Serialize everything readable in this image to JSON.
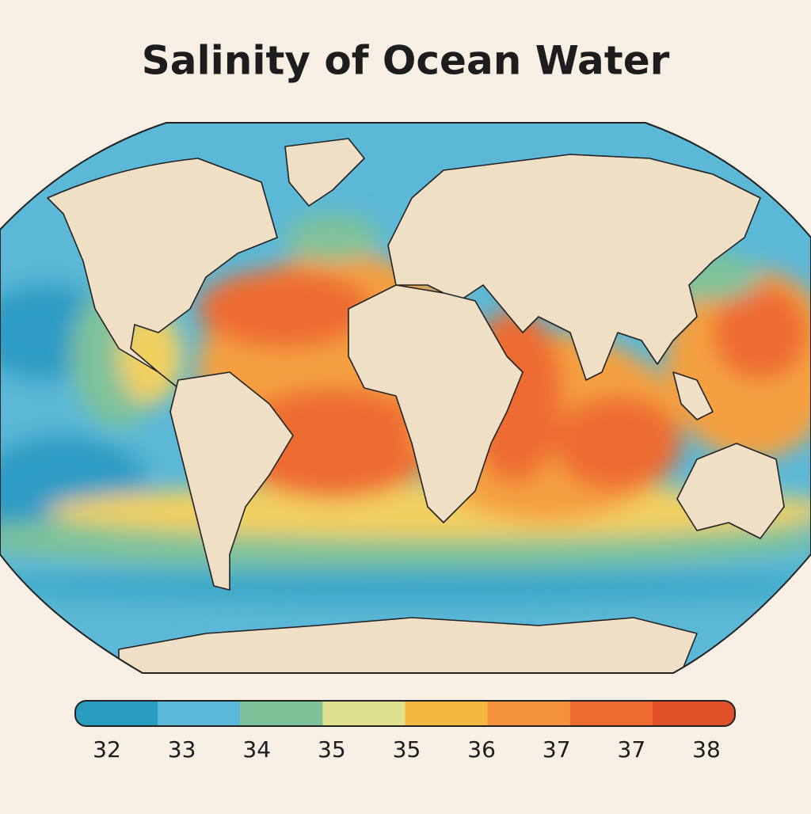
{
  "title": "Salinity of Ocean Water",
  "legend": {
    "colors": [
      "#2a9cc0",
      "#5cb8d8",
      "#7fc29a",
      "#dfe08e",
      "#f4b840",
      "#f3923a",
      "#ee6c30",
      "#e2502a"
    ],
    "labels": [
      32,
      33,
      34,
      35,
      35,
      36,
      37,
      37,
      38
    ]
  }
}
